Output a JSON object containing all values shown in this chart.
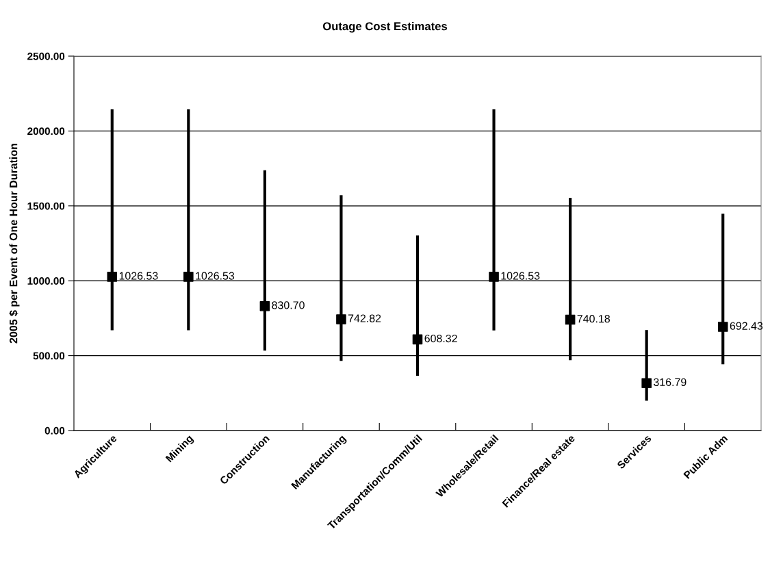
{
  "chart_data": {
    "type": "scatter",
    "title": "Outage Cost Estimates",
    "ylabel": "2005 $ per Event of One Hour Duration",
    "categories": [
      "Agriculture",
      "Mining",
      "Construction",
      "Manufacturing",
      "Transportation/Comm/Util",
      "Wholesale/Retail",
      "Finance/Real estate",
      "Services",
      "Public Adm"
    ],
    "values": [
      1026.53,
      1026.53,
      830.7,
      742.82,
      608.32,
      1026.53,
      740.18,
      316.79,
      692.43
    ],
    "value_labels": [
      "1026.53",
      "1026.53",
      "830.70",
      "742.82",
      "608.32",
      "1026.53",
      "740.18",
      "316.79",
      "692.43"
    ],
    "errors": [
      [
        669,
        2146
      ],
      [
        669,
        2146
      ],
      [
        534,
        1738
      ],
      [
        465,
        1571
      ],
      [
        366,
        1302
      ],
      [
        668,
        2146
      ],
      [
        470,
        1554
      ],
      [
        199,
        671
      ],
      [
        442,
        1448
      ]
    ],
    "color": "#000000",
    "marker": "square",
    "ylim": [
      0,
      2500
    ],
    "yticks": [
      {
        "value": 0,
        "label": "0.00"
      },
      {
        "value": 500,
        "label": "500.00"
      },
      {
        "value": 1000,
        "label": "1000.00"
      },
      {
        "value": 1500,
        "label": "1500.00"
      },
      {
        "value": 2000,
        "label": "2000.00"
      },
      {
        "value": 2500,
        "label": "2500.00"
      }
    ],
    "grid": "y"
  }
}
